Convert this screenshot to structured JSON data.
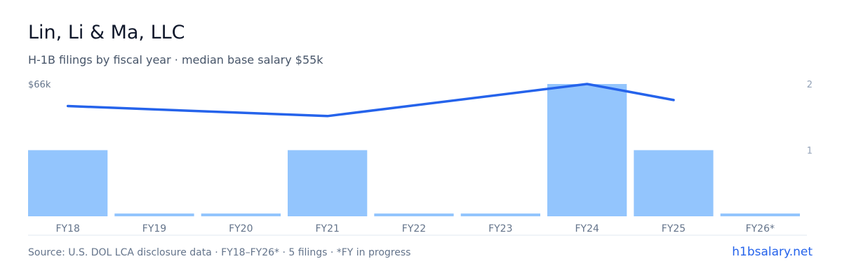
{
  "header": {
    "title": "Lin, Li & Ma, LLC",
    "subtitle": "H-1B filings by fiscal year · median base salary $55k"
  },
  "footer": {
    "source": "Source: U.S. DOL LCA disclosure data · FY18–FY26* · 5 filings · *FY in progress",
    "brand": "h1bsalary.net"
  },
  "colors": {
    "bar": "#93c5fd",
    "line": "#2563eb",
    "axis_text": "#64748b",
    "right_axis_text": "#94a3b8",
    "baseline": "#e2e8f0"
  },
  "chart_data": {
    "type": "bar",
    "categories": [
      "FY18",
      "FY19",
      "FY20",
      "FY21",
      "FY22",
      "FY23",
      "FY24",
      "FY25",
      "FY26*"
    ],
    "series": [
      {
        "type": "bar",
        "axis": "right",
        "values": [
          1,
          0,
          0,
          1,
          0,
          0,
          2,
          1,
          0
        ]
      },
      {
        "type": "line",
        "axis": "left",
        "values": [
          55,
          null,
          null,
          50,
          null,
          null,
          66,
          58,
          null
        ]
      }
    ],
    "left_axis": {
      "tick_labels": [
        "$66k"
      ],
      "max": 66
    },
    "right_axis": {
      "tick_labels": [
        "2",
        "1"
      ],
      "max": 2
    },
    "legend": "none",
    "grid": false
  }
}
